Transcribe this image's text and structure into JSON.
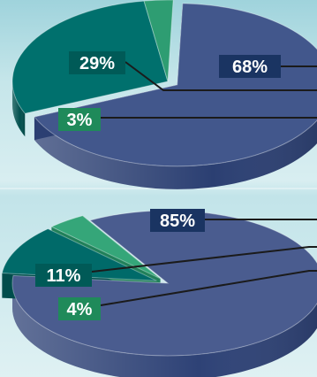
{
  "chart_data": [
    {
      "type": "pie",
      "title": "",
      "slices": [
        {
          "label": "68%",
          "value": 68,
          "color": "#42578c",
          "side": "#2b3f72",
          "exploded": true,
          "label_box": "#1a3462"
        },
        {
          "label": "29%",
          "value": 29,
          "color": "#00706d",
          "side": "#00504e",
          "exploded": false,
          "label_box": "#005a57"
        },
        {
          "label": "3%",
          "value": 3,
          "color": "#2e9d72",
          "side": "#1f7a54",
          "exploded": false,
          "label_box": "#1f8a5a"
        }
      ]
    },
    {
      "type": "pie",
      "title": "",
      "slices": [
        {
          "label": "85%",
          "value": 85,
          "color": "#4a5c8f",
          "side": "#2e4276",
          "exploded": false,
          "label_box": "#1a3462"
        },
        {
          "label": "11%",
          "value": 11,
          "color": "#006a69",
          "side": "#004d4c",
          "exploded": true,
          "label_box": "#005a57"
        },
        {
          "label": "4%",
          "value": 4,
          "color": "#35a679",
          "side": "#21805a",
          "exploded": true,
          "label_box": "#1f8a5a"
        }
      ]
    }
  ]
}
